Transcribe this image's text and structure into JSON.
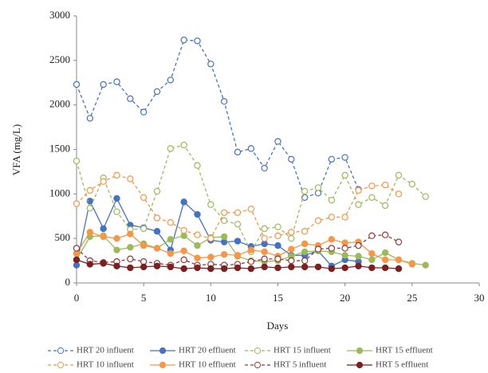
{
  "chart_data": {
    "type": "line",
    "x_label": "Days",
    "y_label": "VFA (mg/L)",
    "x": [
      0,
      1,
      2,
      3,
      4,
      5,
      6,
      7,
      8,
      9,
      10,
      11,
      12,
      13,
      14,
      15,
      16,
      17,
      18,
      19,
      20,
      21,
      22,
      23,
      24,
      25,
      26
    ],
    "xlim": [
      0,
      30
    ],
    "xticks": [
      0,
      5,
      10,
      15,
      20,
      25,
      30
    ],
    "ylim": [
      0,
      3000
    ],
    "yticks": [
      0,
      500,
      1000,
      1500,
      2000,
      2500,
      3000
    ],
    "grid": false,
    "legend": "bottom",
    "series": [
      {
        "name": "HRT 20 influent",
        "color": "#4472c4",
        "dashed": true,
        "filled": false,
        "values": [
          2230,
          1850,
          2230,
          2260,
          2070,
          1920,
          2150,
          2280,
          2730,
          2720,
          2460,
          2040,
          1470,
          1510,
          1290,
          1590,
          1390,
          960,
          1010,
          1390,
          1410,
          1050,
          null,
          null,
          null,
          null,
          null
        ]
      },
      {
        "name": "HRT 20 effluent",
        "color": "#4472c4",
        "dashed": false,
        "filled": true,
        "values": [
          200,
          920,
          610,
          950,
          650,
          620,
          580,
          370,
          910,
          770,
          480,
          460,
          470,
          410,
          440,
          420,
          310,
          310,
          360,
          190,
          260,
          240,
          null,
          null,
          null,
          null,
          null
        ]
      },
      {
        "name": "HRT 15 influent",
        "color": "#9bbb59",
        "dashed": true,
        "filled": false,
        "values": [
          1370,
          840,
          1180,
          800,
          600,
          610,
          1030,
          1510,
          1550,
          1320,
          880,
          700,
          660,
          350,
          610,
          630,
          500,
          1030,
          1070,
          930,
          1210,
          880,
          960,
          870,
          1210,
          1110,
          970
        ]
      },
      {
        "name": "HRT 15 effluent",
        "color": "#9bbb59",
        "dashed": false,
        "filled": true,
        "values": [
          260,
          520,
          530,
          370,
          400,
          440,
          390,
          490,
          530,
          420,
          510,
          520,
          300,
          250,
          240,
          250,
          300,
          350,
          360,
          350,
          310,
          300,
          260,
          340,
          260,
          220,
          200
        ]
      },
      {
        "name": "HRT 10 influent",
        "color": "#f79646",
        "dashed": true,
        "filled": false,
        "values": [
          890,
          1040,
          1140,
          1210,
          1170,
          960,
          730,
          680,
          590,
          540,
          500,
          790,
          790,
          830,
          500,
          530,
          570,
          580,
          700,
          740,
          740,
          1040,
          1090,
          1100,
          1000,
          null,
          null
        ]
      },
      {
        "name": "HRT 10 effluent",
        "color": "#f79646",
        "dashed": false,
        "filled": true,
        "values": [
          330,
          570,
          520,
          500,
          550,
          420,
          390,
          330,
          360,
          280,
          290,
          320,
          310,
          370,
          350,
          300,
          380,
          440,
          420,
          490,
          450,
          460,
          330,
          260,
          260,
          210,
          null
        ]
      },
      {
        "name": "HRT 5 influent",
        "color": "#953735",
        "dashed": true,
        "filled": false,
        "values": [
          390,
          250,
          230,
          240,
          270,
          240,
          220,
          200,
          260,
          200,
          210,
          200,
          210,
          240,
          270,
          270,
          250,
          250,
          380,
          390,
          390,
          420,
          530,
          540,
          460,
          null,
          null
        ]
      },
      {
        "name": "HRT 5 effluent",
        "color": "#7b1f1f",
        "dashed": false,
        "filled": true,
        "values": [
          260,
          210,
          220,
          190,
          170,
          180,
          190,
          180,
          160,
          170,
          160,
          160,
          170,
          160,
          180,
          170,
          180,
          180,
          180,
          160,
          170,
          190,
          170,
          170,
          160,
          null,
          null
        ]
      }
    ]
  }
}
